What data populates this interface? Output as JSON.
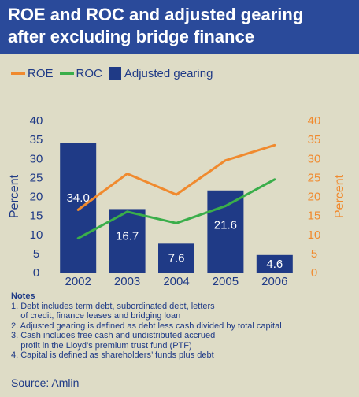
{
  "title": "ROE and ROC and adjusted gearing\nafter excluding bridge finance",
  "legend": [
    {
      "label": "ROE",
      "color": "#f08a2e",
      "kind": "line"
    },
    {
      "label": "ROC",
      "color": "#3aae4a",
      "kind": "line"
    },
    {
      "label": "Adjusted gearing",
      "color": "#1f3a86",
      "kind": "bar"
    }
  ],
  "chart_data": {
    "type": "bar",
    "categories": [
      "2002",
      "2003",
      "2004",
      "2005",
      "2006"
    ],
    "series": [
      {
        "name": "Adjusted gearing",
        "type": "bar",
        "axis": "left",
        "color": "#1f3a86",
        "values": [
          34.0,
          16.7,
          7.6,
          21.6,
          4.6
        ],
        "data_labels": [
          "34.0",
          "16.7",
          "7.6",
          "21.6",
          "4.6"
        ]
      },
      {
        "name": "ROE",
        "type": "line",
        "axis": "right",
        "color": "#f08a2e",
        "values": [
          16.5,
          26.0,
          20.5,
          29.5,
          33.5
        ]
      },
      {
        "name": "ROC",
        "type": "line",
        "axis": "right",
        "color": "#3aae4a",
        "values": [
          9.0,
          16.0,
          13.0,
          17.5,
          24.5
        ]
      }
    ],
    "ylabel": "Percent",
    "y2label": "Percent",
    "ylim": [
      0,
      40
    ],
    "y2lim": [
      0,
      40
    ],
    "yticks": [
      "0",
      "5",
      "10",
      "15",
      "20",
      "25",
      "30",
      "35",
      "40"
    ],
    "grid": false,
    "legend_position": "top-left"
  },
  "notes": {
    "title": "Notes",
    "lines": [
      "1. Debt includes term debt, subordinated debt, letters",
      "    of credit, finance leases and bridging loan",
      "2. Adjusted gearing is defined as debt less cash divided by total capital",
      "3. Cash includes free cash and undistributed accrued",
      "    profit in the Lloyd’s premium trust fund (PTF)",
      "4. Capital is defined as shareholders’ funds plus debt"
    ]
  },
  "source": "Source: Amlin",
  "colors": {
    "title_bg": "#2a4a9a",
    "background": "#dedcc6",
    "text": "#1f3a86",
    "roe": "#f08a2e",
    "roc": "#3aae4a",
    "bar": "#1f3a86"
  }
}
